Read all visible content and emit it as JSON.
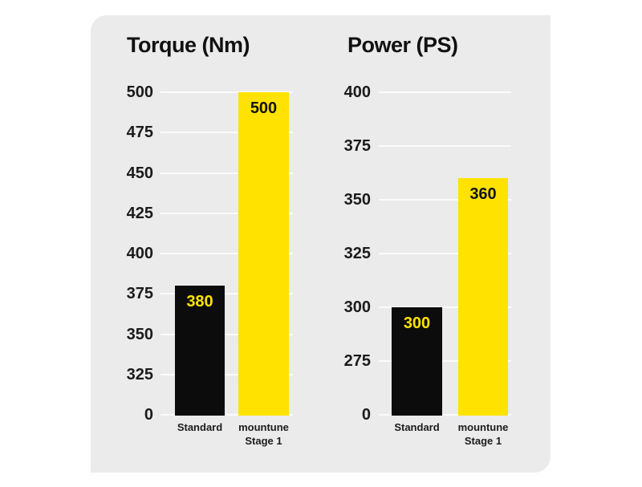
{
  "page": {
    "background_color": "#ffffff",
    "card_background_color": "#ebebeb"
  },
  "style": {
    "grid_color": "#fbfbfb",
    "text_color": "#1b1b1b",
    "bar_colors": [
      "#0c0c0c",
      "#ffe200"
    ],
    "bar_value_label_colors": [
      "#ffe200",
      "#131313"
    ]
  },
  "chart_data": [
    {
      "type": "bar",
      "title": "Torque (Nm)",
      "categories": [
        "Standard",
        "mountune\nStage 1"
      ],
      "values": [
        380,
        500
      ],
      "bar_value_labels": [
        "380",
        "500"
      ],
      "yticks": [
        500,
        475,
        450,
        425,
        400,
        375,
        350,
        325,
        0
      ],
      "ylim": [
        0,
        500
      ],
      "grid": true,
      "legend": false,
      "axis_note": "y axis compressed between 0 and 325"
    },
    {
      "type": "bar",
      "title": "Power (PS)",
      "categories": [
        "Standard",
        "mountune\nStage 1"
      ],
      "values": [
        300,
        360
      ],
      "bar_value_labels": [
        "300",
        "360"
      ],
      "yticks": [
        400,
        375,
        350,
        325,
        300,
        275,
        0
      ],
      "ylim": [
        0,
        400
      ],
      "grid": true,
      "legend": false,
      "axis_note": "y axis compressed between 0 and 275"
    }
  ]
}
